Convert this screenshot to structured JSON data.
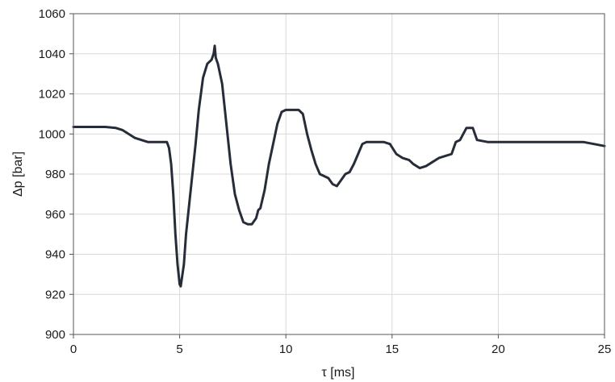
{
  "chart_data": {
    "type": "line",
    "xlabel": "τ [ms]",
    "ylabel": "Δp [bar]",
    "xlim": [
      0,
      25
    ],
    "ylim": [
      900,
      1060
    ],
    "xticks": [
      0,
      5,
      10,
      15,
      20,
      25
    ],
    "yticks": [
      900,
      920,
      940,
      960,
      980,
      1000,
      1020,
      1040,
      1060
    ],
    "grid": true,
    "colors": {
      "line": "#262d38",
      "grid": "#d9d9d9",
      "axis": "#555555"
    },
    "series": [
      {
        "x": [
          0,
          0.5,
          1.0,
          1.5,
          2.0,
          2.3,
          2.6,
          2.9,
          3.2,
          3.5,
          3.8,
          4.1,
          4.4,
          4.5,
          4.6,
          4.7,
          4.8,
          4.9,
          5.0,
          5.05,
          5.2,
          5.3,
          5.45,
          5.6,
          5.75,
          5.9,
          6.1,
          6.3,
          6.5,
          6.6,
          6.65,
          6.7,
          6.8,
          7.0,
          7.2,
          7.4,
          7.6,
          7.8,
          8.0,
          8.2,
          8.4,
          8.6,
          8.7,
          8.8,
          9.0,
          9.2,
          9.4,
          9.6,
          9.8,
          10.0,
          10.2,
          10.4,
          10.6,
          10.8,
          11.0,
          11.2,
          11.4,
          11.6,
          11.8,
          12.0,
          12.2,
          12.4,
          12.6,
          12.8,
          13.0,
          13.2,
          13.4,
          13.6,
          13.8,
          14.0,
          14.3,
          14.6,
          14.9,
          15.2,
          15.5,
          15.8,
          16.0,
          16.3,
          16.6,
          16.9,
          17.2,
          17.5,
          17.8,
          18.0,
          18.2,
          18.5,
          18.8,
          19.0,
          19.5,
          20.0,
          21.0,
          22.0,
          23.0,
          24.0,
          24.5,
          25.0
        ],
        "y": [
          1003.5,
          1003.5,
          1003.5,
          1003.5,
          1003,
          1002,
          1000,
          998,
          997,
          996,
          996,
          996,
          996,
          993,
          985,
          970,
          950,
          935,
          925,
          924,
          935,
          950,
          965,
          980,
          995,
          1012,
          1028,
          1035,
          1037,
          1040,
          1044,
          1038,
          1035,
          1025,
          1005,
          985,
          970,
          962,
          956,
          955,
          955,
          958,
          962,
          963,
          972,
          985,
          995,
          1005,
          1011,
          1012,
          1012,
          1012,
          1012,
          1010,
          1000,
          992,
          985,
          980,
          979,
          978,
          975,
          974,
          977,
          980,
          981,
          985,
          990,
          995,
          996,
          996,
          996,
          996,
          995,
          990,
          988,
          987,
          985,
          983,
          984,
          986,
          988,
          989,
          990,
          996,
          997,
          1003,
          1003,
          997,
          996,
          996,
          996,
          996,
          996,
          996,
          995,
          994
        ]
      }
    ]
  }
}
